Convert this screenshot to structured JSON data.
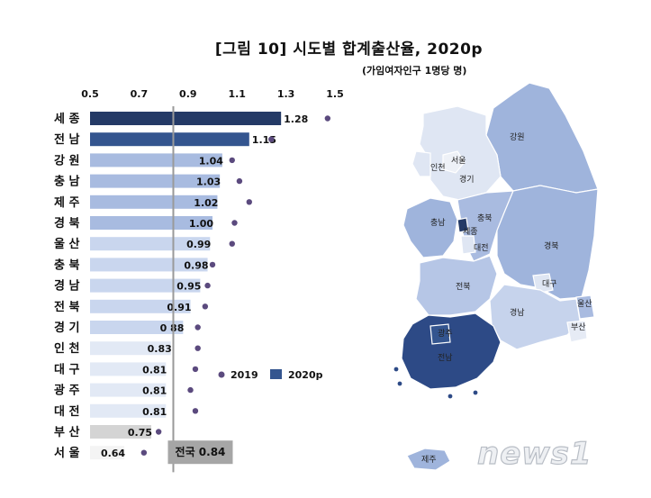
{
  "title": "[그림 10] 시도별 합계출산율, 2020p",
  "unit": "(가임여자인구 1명당 명)",
  "chart_data": {
    "type": "bar",
    "orientation": "horizontal",
    "xlim": [
      0.5,
      1.5
    ],
    "ticks": [
      "0.5",
      "0.7",
      "0.9",
      "1.1",
      "1.3",
      "1.5"
    ],
    "categories": [
      "세 종",
      "전 남",
      "강 원",
      "충 남",
      "제 주",
      "경 북",
      "울 산",
      "충 북",
      "경 남",
      "전 북",
      "경 기",
      "인 천",
      "대 구",
      "광 주",
      "대 전",
      "부 산",
      "서 울"
    ],
    "series": [
      {
        "name": "2020p",
        "type": "bar",
        "values": [
          1.28,
          1.15,
          1.04,
          1.03,
          1.02,
          1.0,
          0.99,
          0.98,
          0.95,
          0.91,
          0.88,
          0.83,
          0.81,
          0.81,
          0.81,
          0.75,
          0.64
        ],
        "labels": [
          "1.28",
          "1.15",
          "1.04",
          "1.03",
          "1.02",
          "1.00",
          "0.99",
          "0.98",
          "0.95",
          "0.91",
          "0 88",
          "0.83",
          "0.81",
          "0.81",
          "0.81",
          "0.75",
          "0.64"
        ]
      },
      {
        "name": "2019",
        "type": "dot",
        "values": [
          1.47,
          1.24,
          1.08,
          1.11,
          1.15,
          1.09,
          1.08,
          1.0,
          0.98,
          0.97,
          0.94,
          0.94,
          0.93,
          0.91,
          0.93,
          0.78,
          0.72
        ]
      }
    ],
    "national": {
      "value": 0.84,
      "label": "전국 0.84"
    },
    "colors": {
      "bar_top": "#243a66",
      "bar_second": "#34558f",
      "bar_light": "#a8bbe0",
      "bar_lighter": "#c9d6ee",
      "bar_palest": "#e2e9f5",
      "bar_gray": "#d4d4d4",
      "bar_white": "#f4f4f4",
      "dot": "#5b4a7e",
      "national_line": "#9a9a9a",
      "national_box": "#a6a6a6"
    }
  },
  "legend": [
    {
      "label": "2019",
      "mark": "dot"
    },
    {
      "label": "2020p",
      "mark": "square"
    }
  ],
  "map": {
    "labels": [
      "강원",
      "서울",
      "인천",
      "경기",
      "충남",
      "충북",
      "세종",
      "대전",
      "경북",
      "대구",
      "전북",
      "울산",
      "경남",
      "부산",
      "광주",
      "전남",
      "제주"
    ]
  },
  "watermark": "news1"
}
